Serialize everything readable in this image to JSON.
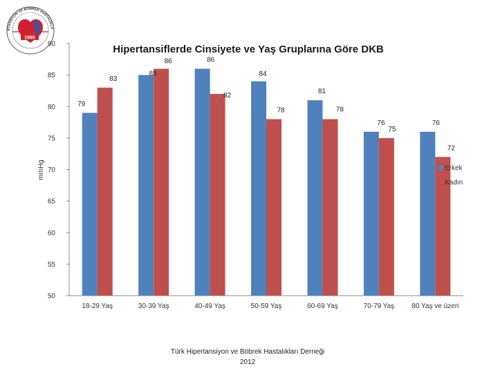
{
  "logo": {
    "ring_text": "TÜRK HİPERTANSİYON VE BÖBREK HASTALIKLARI DERNEĞİ",
    "year": "1995",
    "colors": {
      "red": "#d1202f",
      "blue": "#2e5aa8"
    }
  },
  "footer": {
    "line1": "Türk Hipertansiyon ve Böbrek Hastalıkları Derneği",
    "line2": "2012"
  },
  "chart_data": {
    "type": "bar",
    "title": "Hipertansiflerde Cinsiyete ve Yaş Gruplarına Göre DKB",
    "ylabel": "mmHg",
    "xlabel": "",
    "ylim": [
      50,
      90
    ],
    "yticks": [
      50,
      55,
      60,
      65,
      70,
      75,
      80,
      85,
      90
    ],
    "grid": false,
    "legend": "right",
    "categories": [
      "18-29 Yaş",
      "30-39 Yaş",
      "40-49 Yaş",
      "50-59 Yaş",
      "60-69 Yaş",
      "70-79 Yaş",
      "80 Yaş ve üzeri"
    ],
    "series": [
      {
        "name": "Erkek",
        "color": "#4f81bd",
        "values": [
          79,
          85,
          86,
          84,
          81,
          76,
          76
        ]
      },
      {
        "name": "Kadın",
        "color": "#c0504d",
        "values": [
          83,
          86,
          82,
          78,
          78,
          75,
          72
        ]
      }
    ]
  }
}
